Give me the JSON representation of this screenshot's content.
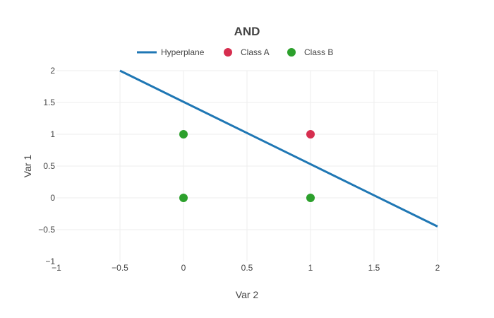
{
  "chart_data": {
    "type": "scatter",
    "title": "AND",
    "xlabel": "Var 2",
    "ylabel": "Var 1",
    "xlim": [
      -1,
      2
    ],
    "ylim": [
      -1,
      2
    ],
    "xticks": [
      -1,
      -0.5,
      0,
      0.5,
      1,
      1.5,
      2
    ],
    "xtick_labels": [
      "−1",
      "−0.5",
      "0",
      "0.5",
      "1",
      "1.5",
      "2"
    ],
    "yticks": [
      -1,
      -0.5,
      0,
      0.5,
      1,
      1.5,
      2
    ],
    "ytick_labels": [
      "−1",
      "−0.5",
      "0",
      "0.5",
      "1",
      "1.5",
      "2"
    ],
    "grid": true,
    "legend_position": "top-center",
    "series": [
      {
        "name": "Hyperplane",
        "mode": "line",
        "color": "#1f77b4",
        "points": [
          [
            -0.5,
            2
          ],
          [
            2,
            -0.45
          ]
        ]
      },
      {
        "name": "Class A",
        "mode": "markers",
        "color": "#d62e4f",
        "points": [
          [
            1,
            1
          ]
        ]
      },
      {
        "name": "Class B",
        "mode": "markers",
        "color": "#2ca02c",
        "points": [
          [
            0,
            1
          ],
          [
            0,
            0
          ],
          [
            1,
            0
          ]
        ]
      }
    ]
  }
}
